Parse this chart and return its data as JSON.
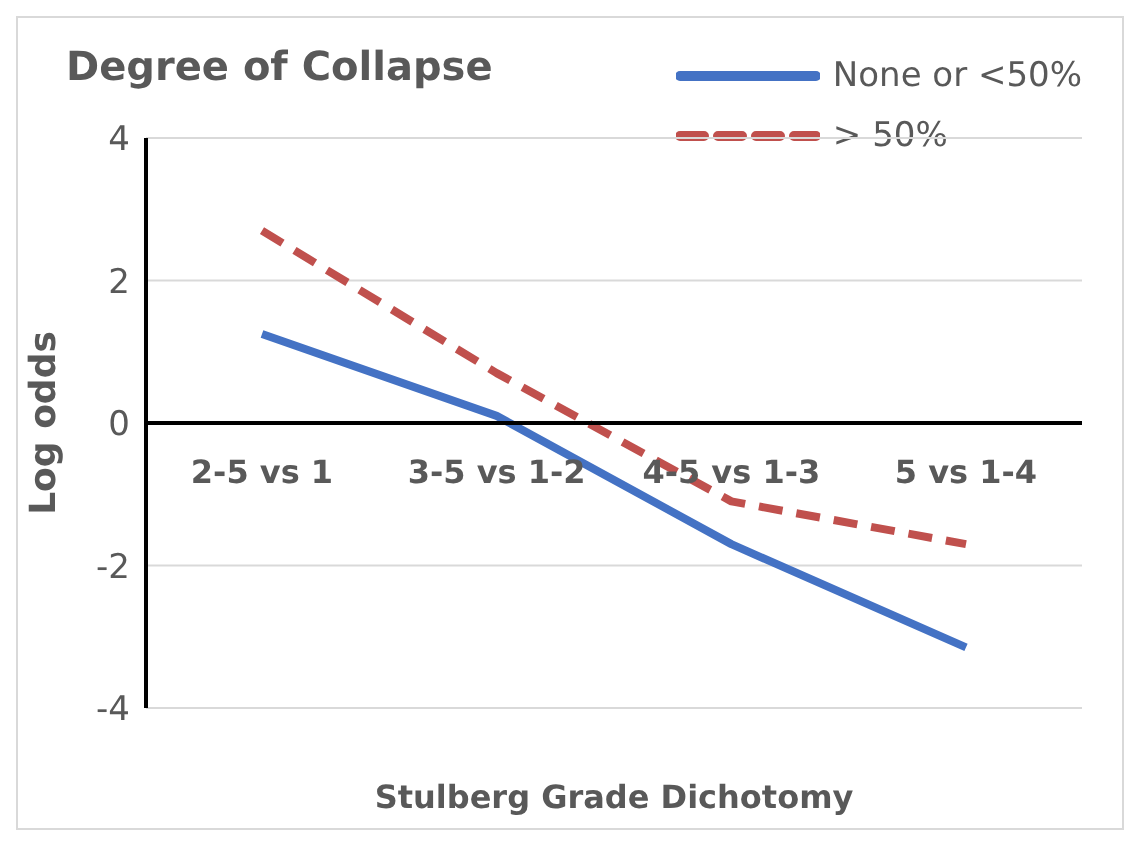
{
  "chart_data": {
    "type": "line",
    "title": "Degree of Collapse",
    "xlabel": "Stulberg Grade Dichotomy",
    "ylabel": "Log odds",
    "categories": [
      "2-5 vs 1",
      "3-5 vs 1-2",
      "4-5 vs 1-3",
      "5 vs 1-4"
    ],
    "series": [
      {
        "name": "None or <50%",
        "color": "#4472c4",
        "values": [
          1.25,
          0.1,
          -1.7,
          -3.15
        ],
        "line_style": "solid"
      },
      {
        "name": "> 50%",
        "color": "#c0504d",
        "values": [
          2.7,
          0.7,
          -1.1,
          -1.7
        ],
        "line_style": "dashed"
      }
    ],
    "ylim": [
      -4,
      4
    ],
    "yticks": [
      -4,
      -2,
      0,
      2,
      4
    ],
    "grid": "y",
    "legend": "top right",
    "marker": "none"
  }
}
